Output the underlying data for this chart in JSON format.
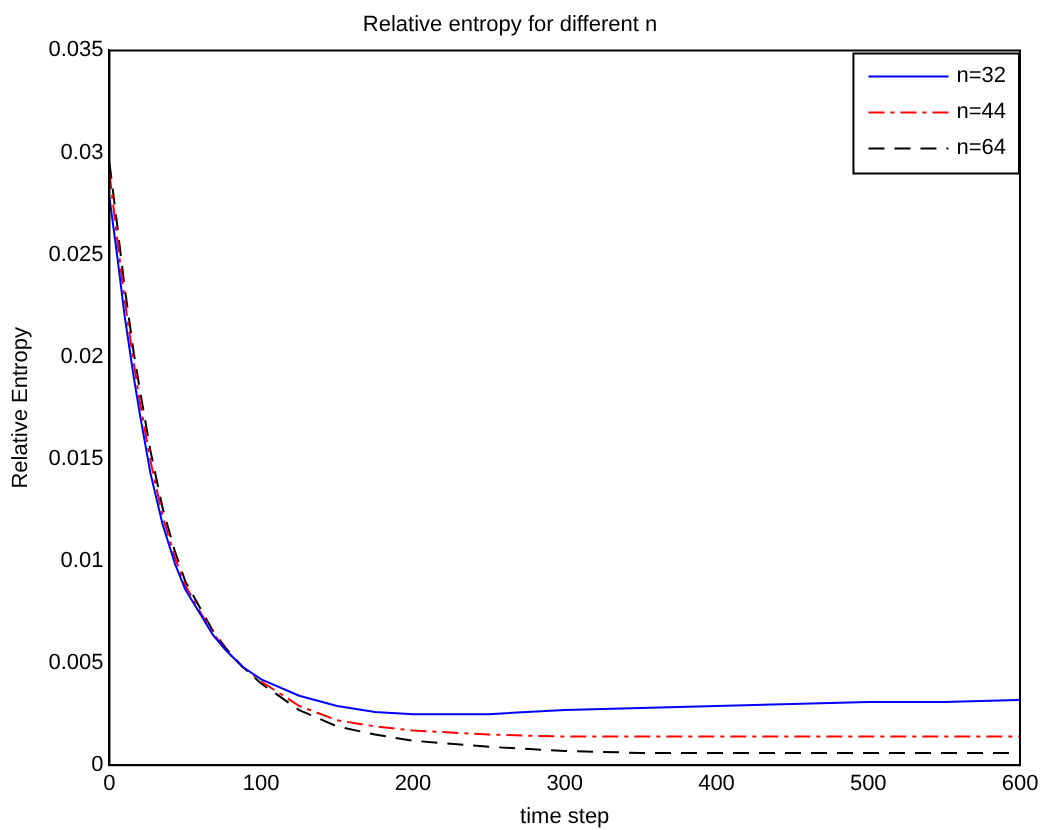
{
  "chart_data": {
    "type": "line",
    "title": "Relative entropy for different n",
    "xlabel": "time step",
    "ylabel": "Relative Entropy",
    "xlim": [
      0,
      600
    ],
    "xticks": [
      0,
      100,
      200,
      300,
      400,
      500,
      600
    ],
    "ylim": [
      0,
      0.035
    ],
    "yticks": [
      0,
      0.005,
      0.01,
      0.015,
      0.02,
      0.025,
      0.03,
      0.035
    ],
    "grid": false,
    "legend": "top right",
    "marker": "none",
    "x": [
      0,
      5,
      10,
      16,
      20,
      27,
      35,
      43,
      50,
      59,
      68,
      77,
      88,
      100,
      125,
      150,
      175,
      200,
      250,
      300,
      350,
      400,
      450,
      500,
      550,
      600
    ],
    "series": [
      {
        "name": "n=32",
        "color": "#0000ff",
        "line_style": "solid",
        "values": [
          0.0278,
          0.025,
          0.022,
          0.019,
          0.0172,
          0.0143,
          0.0118,
          0.0099,
          0.0086,
          0.0075,
          0.0064,
          0.0056,
          0.0048,
          0.0042,
          0.0034,
          0.0029,
          0.0026,
          0.0025,
          0.0025,
          0.0027,
          0.0028,
          0.0029,
          0.003,
          0.0031,
          0.0031,
          0.0032
        ]
      },
      {
        "name": "n=44",
        "color": "#ff0000",
        "line_style": "dashdot",
        "values": [
          0.029,
          0.0258,
          0.0228,
          0.0197,
          0.0178,
          0.0149,
          0.0122,
          0.0102,
          0.0088,
          0.0076,
          0.0065,
          0.0056,
          0.0048,
          0.0041,
          0.0029,
          0.0022,
          0.0019,
          0.0017,
          0.0015,
          0.0014,
          0.0014,
          0.0014,
          0.0014,
          0.0014,
          0.0014,
          0.0014
        ]
      },
      {
        "name": "n=64",
        "color": "#000000",
        "line_style": "dashed",
        "values": [
          0.0295,
          0.0265,
          0.0234,
          0.0202,
          0.0184,
          0.0154,
          0.0126,
          0.0105,
          0.009,
          0.0078,
          0.0066,
          0.0057,
          0.0048,
          0.004,
          0.0027,
          0.0019,
          0.0015,
          0.0012,
          0.0009,
          0.0007,
          0.0006,
          0.0006,
          0.0006,
          0.0006,
          0.0006,
          0.0006
        ]
      }
    ]
  }
}
